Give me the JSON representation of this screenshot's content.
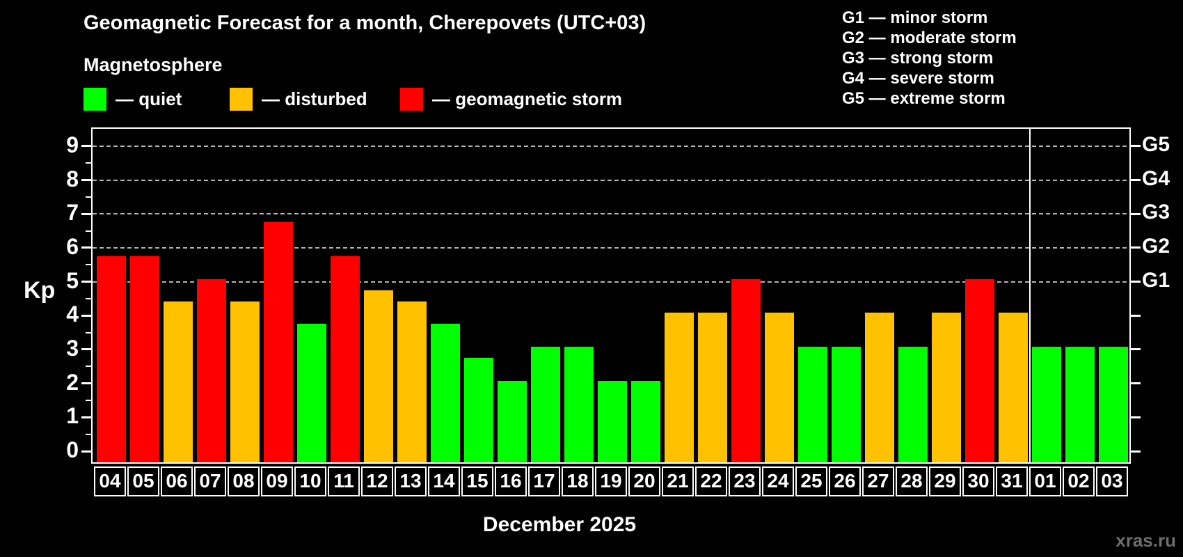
{
  "title": "Geomagnetic Forecast for a month, Cherepovets (UTC+03)",
  "subtitle": "Magnetosphere",
  "legend": {
    "items": [
      {
        "label": "— quiet",
        "level": "quiet",
        "color": "#00ff00"
      },
      {
        "label": "— disturbed",
        "level": "disturbed",
        "color": "#ffc100"
      },
      {
        "label": "— geomagnetic storm",
        "level": "storm",
        "color": "#ff0000"
      }
    ]
  },
  "g_scale_legend": [
    "G1 — minor storm",
    "G2 — moderate storm",
    "G3 — strong storm",
    "G4 — severe storm",
    "G5 — extreme storm"
  ],
  "watermark": "xras.ru",
  "colors": {
    "background": "#000000",
    "frame": "#ffffff",
    "grid": "#b3b3b3",
    "quiet": "#00ff00",
    "disturbed": "#ffc100",
    "storm": "#ff0000",
    "watermark_text": "#6e6e6e"
  },
  "chart_data": {
    "type": "bar",
    "title": "Geomagnetic Forecast for a month, Cherepovets (UTC+03)",
    "xlabel": "December 2025",
    "ylabel": "Kp",
    "ylim": [
      0,
      9
    ],
    "yticks": [
      0,
      1,
      2,
      3,
      4,
      5,
      6,
      7,
      8,
      9
    ],
    "grid": "dashed horizontal lines at Kp 5-9 only",
    "right_axis_labels": [
      {
        "kp": 5,
        "label": "G1"
      },
      {
        "kp": 6,
        "label": "G2"
      },
      {
        "kp": 7,
        "label": "G3"
      },
      {
        "kp": 8,
        "label": "G4"
      },
      {
        "kp": 9,
        "label": "G5"
      }
    ],
    "month_boundary_after_index": 27,
    "categories": [
      "04",
      "05",
      "06",
      "07",
      "08",
      "09",
      "10",
      "11",
      "12",
      "13",
      "14",
      "15",
      "16",
      "17",
      "18",
      "19",
      "20",
      "21",
      "22",
      "23",
      "24",
      "25",
      "26",
      "27",
      "28",
      "29",
      "30",
      "31",
      "01",
      "02",
      "03"
    ],
    "series": [
      {
        "day": "04",
        "kp": 5.67,
        "level": "storm"
      },
      {
        "day": "05",
        "kp": 5.67,
        "level": "storm"
      },
      {
        "day": "06",
        "kp": 4.33,
        "level": "disturbed"
      },
      {
        "day": "07",
        "kp": 5.0,
        "level": "storm"
      },
      {
        "day": "08",
        "kp": 4.33,
        "level": "disturbed"
      },
      {
        "day": "09",
        "kp": 6.67,
        "level": "storm"
      },
      {
        "day": "10",
        "kp": 3.67,
        "level": "quiet"
      },
      {
        "day": "11",
        "kp": 5.67,
        "level": "storm"
      },
      {
        "day": "12",
        "kp": 4.67,
        "level": "disturbed"
      },
      {
        "day": "13",
        "kp": 4.33,
        "level": "disturbed"
      },
      {
        "day": "14",
        "kp": 3.67,
        "level": "quiet"
      },
      {
        "day": "15",
        "kp": 2.67,
        "level": "quiet"
      },
      {
        "day": "16",
        "kp": 2.0,
        "level": "quiet"
      },
      {
        "day": "17",
        "kp": 3.0,
        "level": "quiet"
      },
      {
        "day": "18",
        "kp": 3.0,
        "level": "quiet"
      },
      {
        "day": "19",
        "kp": 2.0,
        "level": "quiet"
      },
      {
        "day": "20",
        "kp": 2.0,
        "level": "quiet"
      },
      {
        "day": "21",
        "kp": 4.0,
        "level": "disturbed"
      },
      {
        "day": "22",
        "kp": 4.0,
        "level": "disturbed"
      },
      {
        "day": "23",
        "kp": 5.0,
        "level": "storm"
      },
      {
        "day": "24",
        "kp": 4.0,
        "level": "disturbed"
      },
      {
        "day": "25",
        "kp": 3.0,
        "level": "quiet"
      },
      {
        "day": "26",
        "kp": 3.0,
        "level": "quiet"
      },
      {
        "day": "27",
        "kp": 4.0,
        "level": "disturbed"
      },
      {
        "day": "28",
        "kp": 3.0,
        "level": "quiet"
      },
      {
        "day": "29",
        "kp": 4.0,
        "level": "disturbed"
      },
      {
        "day": "30",
        "kp": 5.0,
        "level": "storm"
      },
      {
        "day": "31",
        "kp": 4.0,
        "level": "disturbed"
      },
      {
        "day": "01",
        "kp": 3.0,
        "level": "quiet"
      },
      {
        "day": "02",
        "kp": 3.0,
        "level": "quiet"
      },
      {
        "day": "03",
        "kp": 3.0,
        "level": "quiet"
      }
    ]
  }
}
